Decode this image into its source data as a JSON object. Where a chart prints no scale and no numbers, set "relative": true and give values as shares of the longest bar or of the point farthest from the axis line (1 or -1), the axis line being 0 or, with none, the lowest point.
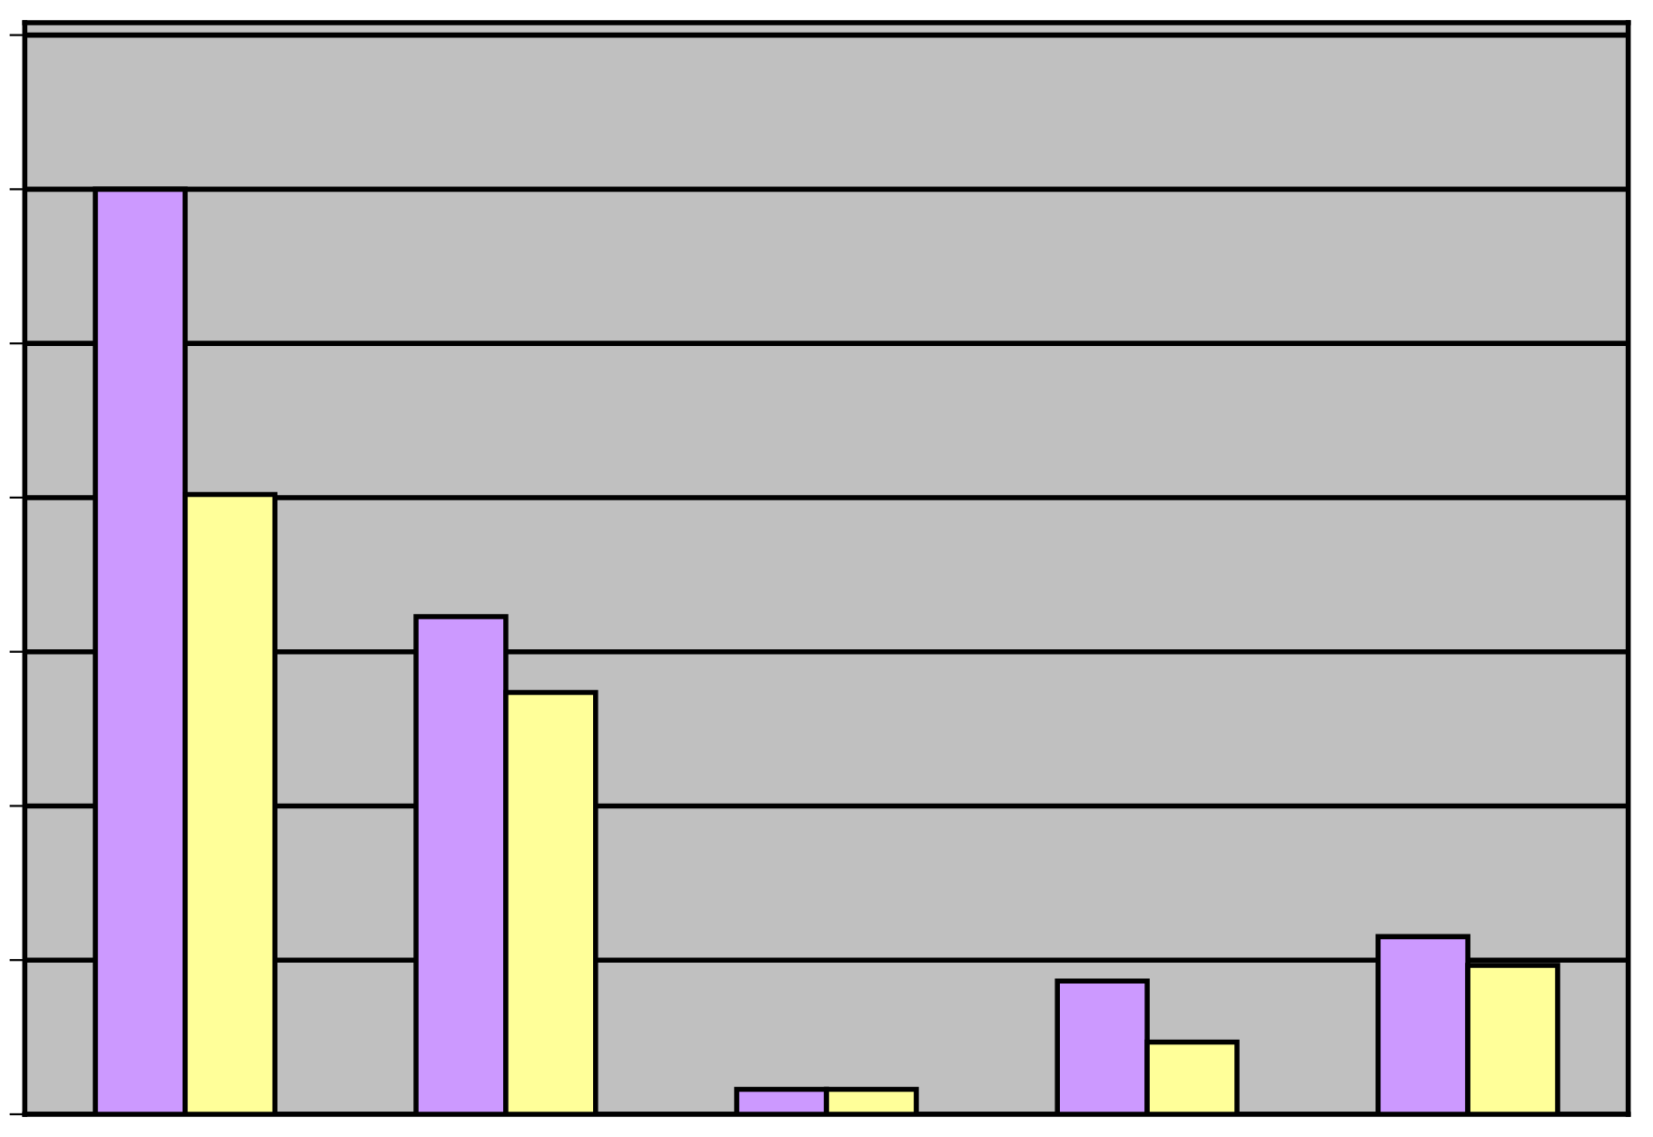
{
  "chart_data": {
    "type": "bar",
    "relative": true,
    "grid": "y",
    "categories": [
      null,
      null,
      null,
      null,
      null
    ],
    "series": [
      {
        "color": "#cc99ff",
        "values": [
          1,
          0.538,
          0.027,
          0.144,
          0.192
        ]
      },
      {
        "color": "#ffff99",
        "values": [
          0.67,
          0.456,
          0.027,
          0.078,
          0.161
        ]
      }
    ]
  }
}
